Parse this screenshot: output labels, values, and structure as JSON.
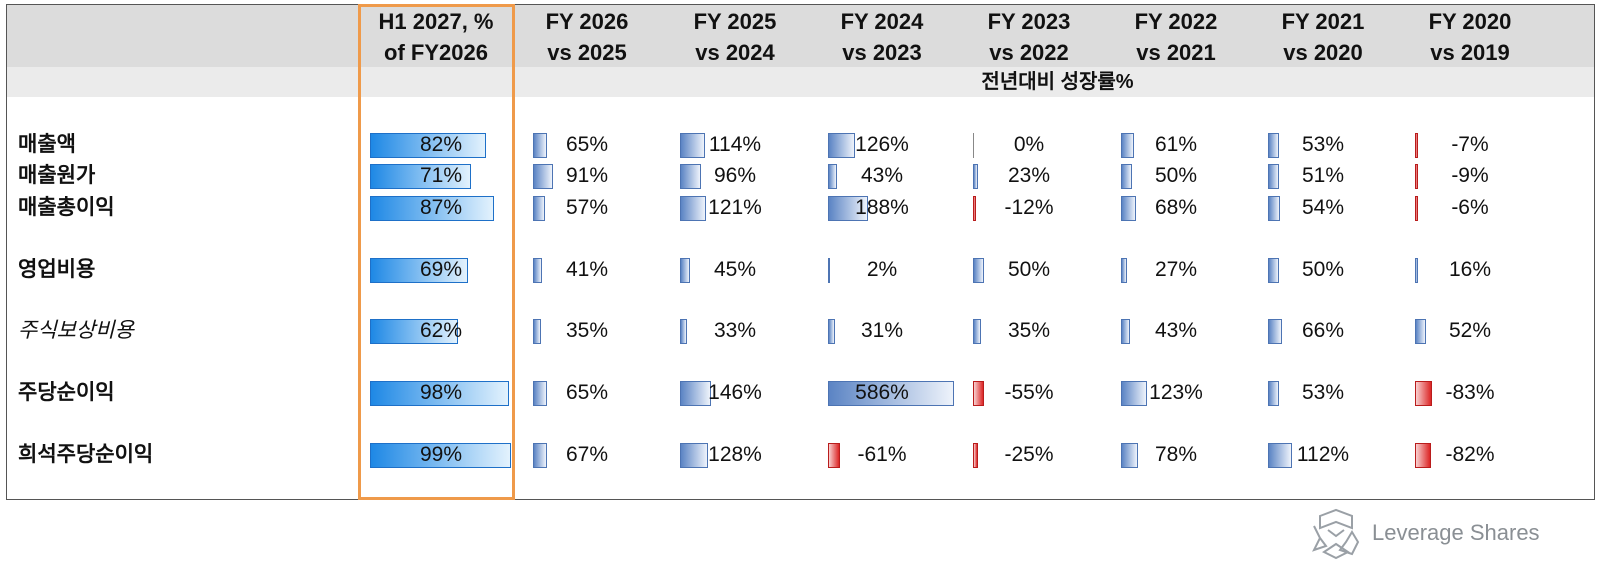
{
  "chart_data": {
    "type": "table",
    "subheader": "전년대비 성장률%",
    "columns": [
      {
        "line1": "H1 2027, %",
        "line2": "of FY2026"
      },
      {
        "line1": "FY 2026",
        "line2": "vs 2025"
      },
      {
        "line1": "FY 2025",
        "line2": "vs 2024"
      },
      {
        "line1": "FY 2024",
        "line2": "vs 2023"
      },
      {
        "line1": "FY 2023",
        "line2": "vs 2022"
      },
      {
        "line1": "FY 2022",
        "line2": "vs 2021"
      },
      {
        "line1": "FY 2021",
        "line2": "vs 2020"
      },
      {
        "line1": "FY 2020",
        "line2": "vs 2019"
      }
    ],
    "rows": [
      {
        "label": "매출액",
        "italic": false,
        "values": [
          82,
          65,
          114,
          126,
          0,
          61,
          53,
          -7
        ]
      },
      {
        "label": "매출원가",
        "italic": false,
        "values": [
          71,
          91,
          96,
          43,
          23,
          50,
          51,
          -9
        ]
      },
      {
        "label": "매출총이익",
        "italic": false,
        "values": [
          87,
          57,
          121,
          188,
          -12,
          68,
          54,
          -6
        ]
      },
      {
        "label": "영업비용",
        "italic": false,
        "values": [
          69,
          41,
          45,
          2,
          50,
          27,
          50,
          16
        ]
      },
      {
        "label": "주식보상비용",
        "italic": true,
        "values": [
          62,
          35,
          33,
          31,
          35,
          43,
          66,
          52
        ]
      },
      {
        "label": "주당순이익",
        "italic": false,
        "values": [
          98,
          65,
          146,
          586,
          -55,
          123,
          53,
          -83
        ]
      },
      {
        "label": "희석주당순이익",
        "italic": false,
        "values": [
          99,
          67,
          128,
          -61,
          -25,
          78,
          112,
          -82
        ]
      }
    ],
    "value_suffix": "%",
    "colors": {
      "h1_bar": "#1e88e5",
      "positive_bar": "#5b84c4",
      "negative_bar": "#dc2626",
      "highlight_border": "#ef9a4a",
      "header_bg": "#dcdcdc"
    }
  },
  "brand": {
    "logo_text": "Leverage Shares"
  }
}
